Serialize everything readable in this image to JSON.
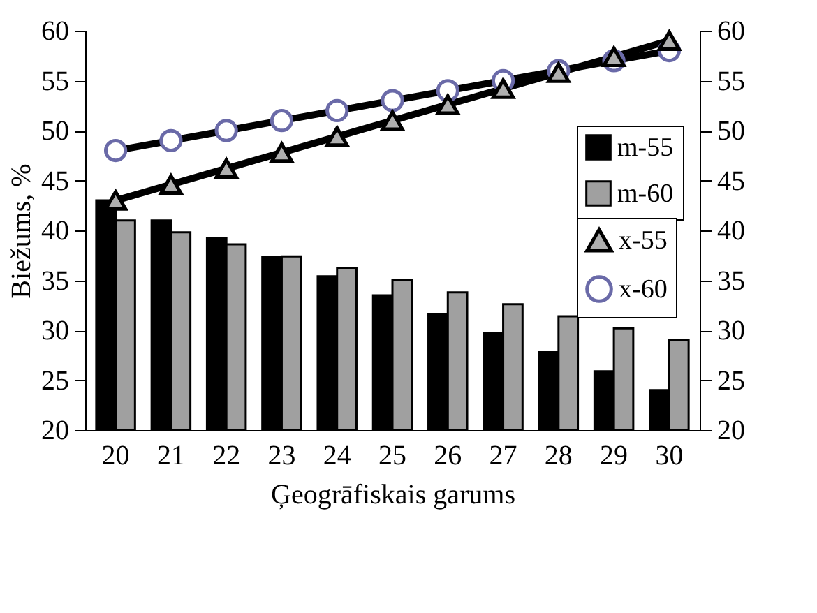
{
  "chart_data": {
    "type": "bar",
    "xlabel": "Ģeogrāfiskais garums",
    "ylabel": "Biežums, %",
    "categories": [
      "20",
      "21",
      "22",
      "23",
      "24",
      "25",
      "26",
      "27",
      "28",
      "29",
      "30"
    ],
    "series": [
      {
        "name": "m-55",
        "color": "#000000",
        "values": [
          43,
          41,
          39.2,
          37.3,
          35.4,
          33.5,
          31.6,
          29.7,
          27.8,
          25.9,
          24
        ]
      },
      {
        "name": "m-60",
        "color": "#a0a0a0",
        "values": [
          41,
          39.8,
          38.6,
          37.4,
          36.2,
          35,
          33.8,
          32.6,
          31.4,
          30.2,
          29
        ]
      },
      {
        "name": "x-55",
        "type": "line",
        "color": "#000000",
        "marker": "triangle",
        "values": [
          43,
          44.6,
          46.2,
          47.8,
          49.4,
          51,
          52.6,
          54.2,
          55.8,
          57.4,
          59
        ]
      },
      {
        "name": "x-60",
        "type": "line",
        "color": "#000000",
        "marker": "circle",
        "values": [
          48,
          49,
          50,
          51,
          52,
          53,
          54,
          55,
          56,
          57,
          58
        ]
      }
    ],
    "ylim": [
      20,
      60
    ],
    "yticks": [
      20,
      25,
      30,
      35,
      40,
      45,
      50,
      55,
      60
    ],
    "y2lim": [
      20,
      60
    ],
    "y2ticks": [
      20,
      25,
      30,
      35,
      40,
      45,
      50,
      55,
      60
    ],
    "grid": false,
    "legend": "right"
  }
}
